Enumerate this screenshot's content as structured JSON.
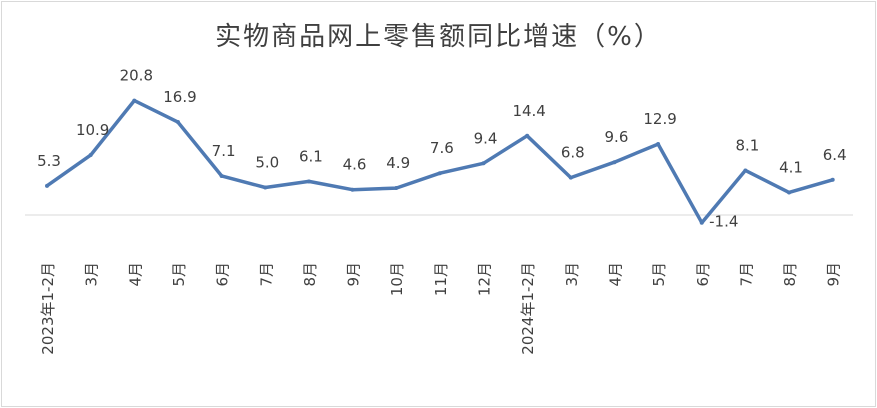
{
  "chart_data": {
    "type": "line",
    "title": "实物商品网上零售额同比增速（%）",
    "categories": [
      "2023年1-2月",
      "3月",
      "4月",
      "5月",
      "6月",
      "7月",
      "8月",
      "9月",
      "10月",
      "11月",
      "12月",
      "2024年1-2月",
      "3月",
      "4月",
      "5月",
      "6月",
      "7月",
      "8月",
      "9月"
    ],
    "labels": [
      "5.3",
      "10.9",
      "20.8",
      "16.9",
      "7.1",
      "5.0",
      "6.1",
      "4.6",
      "4.9",
      "7.6",
      "9.4",
      "14.4",
      "6.8",
      "9.6",
      "12.9",
      "-1.4",
      "8.1",
      "4.1",
      "6.4"
    ],
    "series": [
      {
        "values": [
          5.3,
          10.9,
          20.8,
          16.9,
          7.1,
          5.0,
          6.1,
          4.6,
          4.9,
          7.6,
          9.4,
          14.4,
          6.8,
          9.6,
          12.9,
          -1.4,
          8.1,
          4.1,
          6.4
        ]
      }
    ],
    "xlabel": "",
    "ylabel": "",
    "grid": false,
    "line_color": "#4f7ab3",
    "axis_color": "#d9d9d9"
  }
}
